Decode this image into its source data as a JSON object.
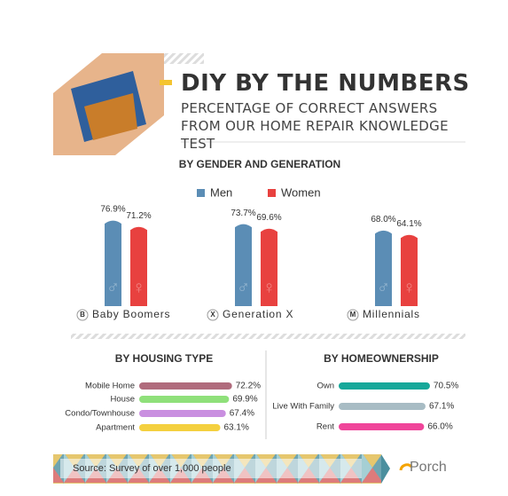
{
  "header": {
    "title": "DIY BY THE NUMBERS",
    "subtitle": "PERCENTAGE OF CORRECT ANSWERS FROM OUR HOME REPAIR KNOWLEDGE TEST"
  },
  "chart_data": [
    {
      "type": "bar",
      "title": "BY GENDER AND GENERATION",
      "categories": [
        "Baby Boomers",
        "Generation X",
        "Millennials"
      ],
      "category_icons": [
        "B",
        "X",
        "M"
      ],
      "series": [
        {
          "name": "Men",
          "color": "#5b8db5",
          "values": [
            76.9,
            73.7,
            68.0
          ],
          "value_labels": [
            "76.9%",
            "73.7%",
            "68.0%"
          ]
        },
        {
          "name": "Women",
          "color": "#e8413f",
          "values": [
            71.2,
            69.6,
            64.1
          ],
          "value_labels": [
            "71.2%",
            "69.6%",
            "64.1%"
          ]
        }
      ]
    },
    {
      "type": "hbar",
      "title": "BY HOUSING TYPE",
      "categories": [
        "Mobile Home",
        "House",
        "Condo/Townhouse",
        "Apartment"
      ],
      "values": [
        72.2,
        69.9,
        67.4,
        63.1
      ],
      "value_labels": [
        "72.2%",
        "69.9%",
        "67.4%",
        "63.1%"
      ],
      "colors": [
        "#b06b7c",
        "#8fe07a",
        "#c98fe0",
        "#f4d03f"
      ]
    },
    {
      "type": "hbar",
      "title": "BY HOMEOWNERSHIP",
      "categories": [
        "Own",
        "Live With Family",
        "Rent"
      ],
      "values": [
        70.5,
        67.1,
        66.0
      ],
      "value_labels": [
        "70.5%",
        "67.1%",
        "66.0%"
      ],
      "colors": [
        "#16a89a",
        "#a8bcc4",
        "#f0459a"
      ]
    }
  ],
  "footer": {
    "source": "Source: Survey of over 1,000 people",
    "brand": "Porch"
  }
}
